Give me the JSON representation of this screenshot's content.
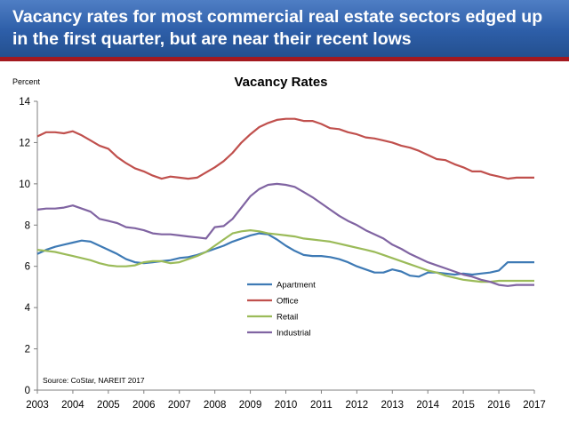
{
  "banner": {
    "title": "Vacancy rates for most commercial real estate  sectors edged up in the first quarter, but are near their recent lows",
    "colors": {
      "background": "#2d5ea8",
      "rule": "#a3191f"
    }
  },
  "chart_data": {
    "type": "line",
    "title": "Vacancy Rates",
    "ylabel": "Percent",
    "xlabel": "",
    "xlim": [
      2003,
      2017
    ],
    "ylim": [
      0,
      14
    ],
    "yticks": [
      0,
      2,
      4,
      6,
      8,
      10,
      12,
      14
    ],
    "xticks": [
      2003,
      2004,
      2005,
      2006,
      2007,
      2008,
      2009,
      2010,
      2011,
      2012,
      2013,
      2014,
      2015,
      2016,
      2017
    ],
    "grid": false,
    "legend_position": "center",
    "source": "Source: CoStar, NAREIT 2017",
    "x": [
      2003.0,
      2003.25,
      2003.5,
      2003.75,
      2004.0,
      2004.25,
      2004.5,
      2004.75,
      2005.0,
      2005.25,
      2005.5,
      2005.75,
      2006.0,
      2006.25,
      2006.5,
      2006.75,
      2007.0,
      2007.25,
      2007.5,
      2007.75,
      2008.0,
      2008.25,
      2008.5,
      2008.75,
      2009.0,
      2009.25,
      2009.5,
      2009.75,
      2010.0,
      2010.25,
      2010.5,
      2010.75,
      2011.0,
      2011.25,
      2011.5,
      2011.75,
      2012.0,
      2012.25,
      2012.5,
      2012.75,
      2013.0,
      2013.25,
      2013.5,
      2013.75,
      2014.0,
      2014.25,
      2014.5,
      2014.75,
      2015.0,
      2015.25,
      2015.5,
      2015.75,
      2016.0,
      2016.25,
      2016.5,
      2016.75,
      2017.0
    ],
    "series": [
      {
        "name": "Apartment",
        "color": "#3e7ab5",
        "values": [
          6.6,
          6.8,
          6.95,
          7.05,
          7.15,
          7.25,
          7.2,
          7.0,
          6.8,
          6.6,
          6.35,
          6.2,
          6.15,
          6.2,
          6.25,
          6.3,
          6.4,
          6.45,
          6.55,
          6.7,
          6.85,
          7.0,
          7.2,
          7.35,
          7.5,
          7.6,
          7.55,
          7.3,
          7.0,
          6.75,
          6.55,
          6.5,
          6.5,
          6.45,
          6.35,
          6.2,
          6.0,
          5.85,
          5.7,
          5.7,
          5.85,
          5.75,
          5.55,
          5.5,
          5.7,
          5.7,
          5.65,
          5.6,
          5.65,
          5.6,
          5.65,
          5.7,
          5.8,
          6.2,
          6.2,
          6.2,
          6.2
        ]
      },
      {
        "name": "Office",
        "color": "#c0504d",
        "values": [
          12.3,
          12.5,
          12.5,
          12.45,
          12.55,
          12.35,
          12.1,
          11.85,
          11.7,
          11.3,
          11.0,
          10.75,
          10.6,
          10.4,
          10.25,
          10.35,
          10.3,
          10.25,
          10.3,
          10.55,
          10.8,
          11.1,
          11.5,
          12.0,
          12.4,
          12.75,
          12.95,
          13.1,
          13.15,
          13.15,
          13.05,
          13.05,
          12.9,
          12.7,
          12.65,
          12.5,
          12.4,
          12.25,
          12.2,
          12.1,
          12.0,
          11.85,
          11.75,
          11.6,
          11.4,
          11.2,
          11.15,
          10.95,
          10.8,
          10.6,
          10.6,
          10.45,
          10.35,
          10.25,
          10.3,
          10.3,
          10.3
        ]
      },
      {
        "name": "Retail",
        "color": "#9bbb59",
        "values": [
          6.8,
          6.75,
          6.7,
          6.6,
          6.5,
          6.4,
          6.3,
          6.15,
          6.05,
          6.0,
          6.0,
          6.05,
          6.2,
          6.25,
          6.25,
          6.15,
          6.2,
          6.35,
          6.5,
          6.7,
          7.0,
          7.3,
          7.6,
          7.7,
          7.75,
          7.7,
          7.6,
          7.55,
          7.5,
          7.45,
          7.35,
          7.3,
          7.25,
          7.2,
          7.1,
          7.0,
          6.9,
          6.8,
          6.7,
          6.55,
          6.4,
          6.25,
          6.1,
          5.95,
          5.8,
          5.7,
          5.55,
          5.45,
          5.35,
          5.3,
          5.25,
          5.25,
          5.3,
          5.3,
          5.3,
          5.3,
          5.3
        ]
      },
      {
        "name": "Industrial",
        "color": "#8064a2",
        "values": [
          8.75,
          8.8,
          8.8,
          8.85,
          8.95,
          8.8,
          8.65,
          8.3,
          8.2,
          8.1,
          7.9,
          7.85,
          7.75,
          7.6,
          7.55,
          7.55,
          7.5,
          7.45,
          7.4,
          7.35,
          7.9,
          7.95,
          8.3,
          8.85,
          9.4,
          9.75,
          9.95,
          10.0,
          9.95,
          9.85,
          9.6,
          9.35,
          9.05,
          8.75,
          8.45,
          8.2,
          8.0,
          7.75,
          7.55,
          7.35,
          7.05,
          6.85,
          6.6,
          6.4,
          6.2,
          6.05,
          5.9,
          5.75,
          5.6,
          5.5,
          5.35,
          5.25,
          5.1,
          5.05,
          5.1,
          5.1,
          5.1
        ]
      }
    ]
  }
}
